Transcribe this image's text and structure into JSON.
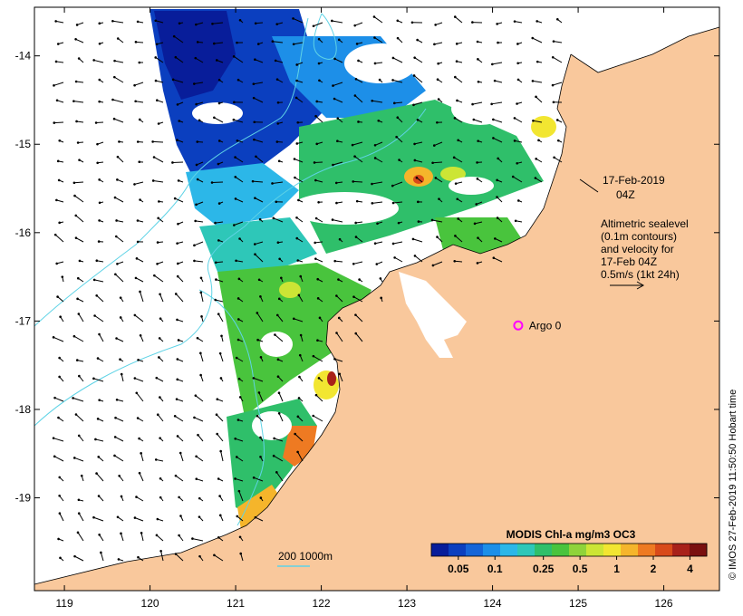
{
  "map": {
    "x_ticks": [
      "119",
      "120",
      "121",
      "122",
      "123",
      "124",
      "125",
      "126"
    ],
    "x_tick_values": [
      119,
      120,
      121,
      122,
      123,
      124,
      125,
      126
    ],
    "y_ticks": [
      "-14",
      "-15",
      "-16",
      "-17",
      "-18",
      "-19"
    ],
    "y_tick_values": [
      -14,
      -15,
      -16,
      -17,
      -18,
      -19
    ],
    "lon_range": [
      118.65,
      126.65
    ],
    "lat_range": [
      -20.05,
      -13.45
    ],
    "land_color": "#f9c89c",
    "ocean_color": "#ffffff",
    "contour_color": "#5fd3e6",
    "arrow_color": "#000000"
  },
  "timestamp_label": {
    "line1": "17-Feb-2019",
    "line2": "04Z"
  },
  "legend_note": {
    "line1": "Altimetric sealevel",
    "line2": "(0.1m contours)",
    "line3": "and velocity for",
    "line4": "17-Feb 04Z",
    "line5": "0.5m/s (1kt 24h)"
  },
  "argo": {
    "label": "Argo 0",
    "lon": 124.3,
    "lat": -17.05,
    "color": "#ff00ff"
  },
  "depth_legend": {
    "label": "200  1000m",
    "color": "#5fd3e6"
  },
  "colorbar": {
    "title": "MODIS Chl-a mg/m3 OC3",
    "tick_labels": [
      "0.05",
      "0.1",
      "0.25",
      "0.5",
      "1",
      "2",
      "4"
    ],
    "colors": [
      "#081d9a",
      "#0b3fbf",
      "#1565d8",
      "#1d8fe8",
      "#2cb7e8",
      "#2ec7b8",
      "#2fbf6a",
      "#49c43d",
      "#8fd33a",
      "#cce535",
      "#f2e631",
      "#f5b52b",
      "#ee7a22",
      "#d84a1a",
      "#a8211a",
      "#7a1010"
    ]
  },
  "credit": "© IMOS 27-Feb-2019 11:50:50 Hobart time"
}
